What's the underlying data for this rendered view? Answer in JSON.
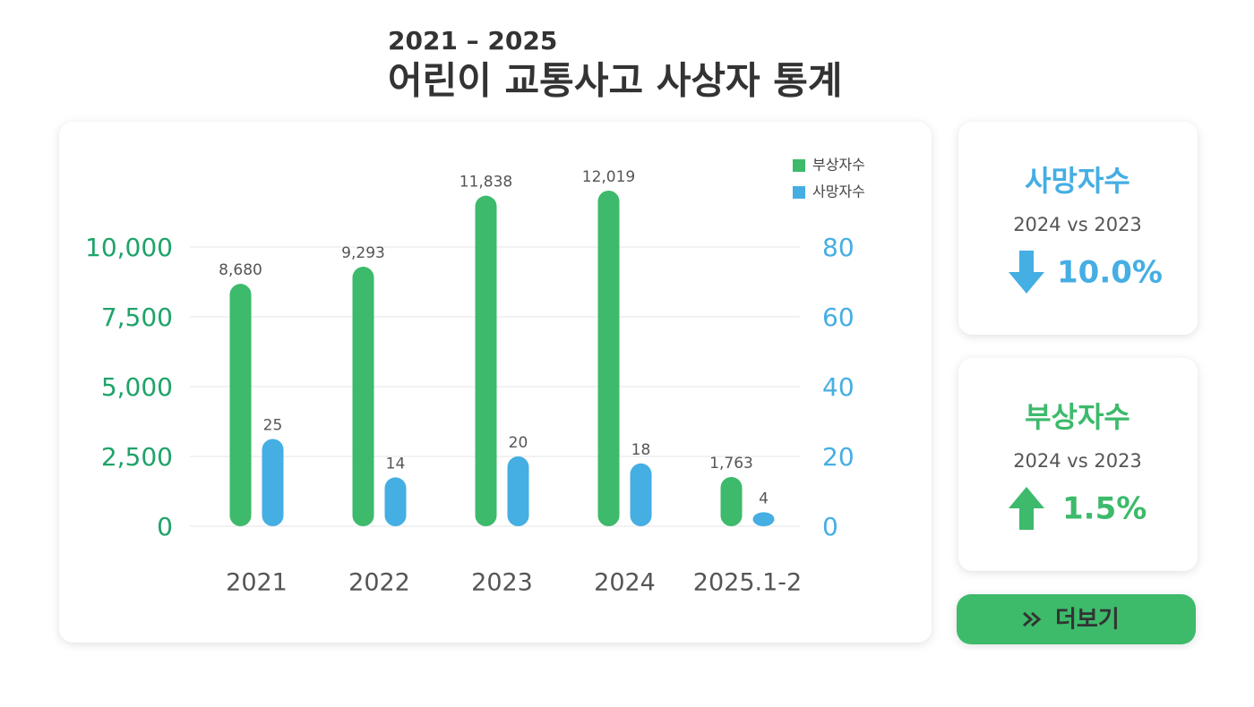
{
  "header": {
    "subtitle": "2021 – 2025",
    "title": "어린이 교통사고 사상자 통계"
  },
  "chart_data": {
    "type": "bar",
    "categories": [
      "2021",
      "2022",
      "2023",
      "2024",
      "2025.1-2"
    ],
    "series": [
      {
        "name": "부상자수",
        "color": "#3dba6b",
        "values": [
          8680,
          9293,
          11838,
          12019,
          1763
        ],
        "value_labels": [
          "8,680",
          "9,293",
          "11,838",
          "12,019",
          "1,763"
        ]
      },
      {
        "name": "사망자수",
        "color": "#45aee3",
        "axis": "y2",
        "values": [
          25,
          14,
          20,
          18,
          4
        ]
      }
    ],
    "ylim": [
      0,
      10000
    ],
    "yticks": [
      0,
      {
        "value": 2500,
        "label": "2,500"
      },
      {
        "value": 5000,
        "label": "5,000"
      },
      {
        "value": 7500,
        "label": "7,500"
      },
      {
        "value": 10000,
        "label": "10,000"
      }
    ],
    "y2lim": [
      0,
      80
    ],
    "y2ticks": [
      0,
      20,
      40,
      60,
      80
    ],
    "grid": true,
    "legend": "top-right"
  },
  "cards": [
    {
      "title": "사망자수",
      "comparison": "2024  vs  2023",
      "change": "10.0%",
      "direction": "down",
      "color": "#45aee3"
    },
    {
      "title": "부상자수",
      "comparison": "2024  vs  2023",
      "change": "1.5%",
      "direction": "up",
      "color": "#3dba6b"
    }
  ],
  "button": {
    "label": "더보기"
  }
}
